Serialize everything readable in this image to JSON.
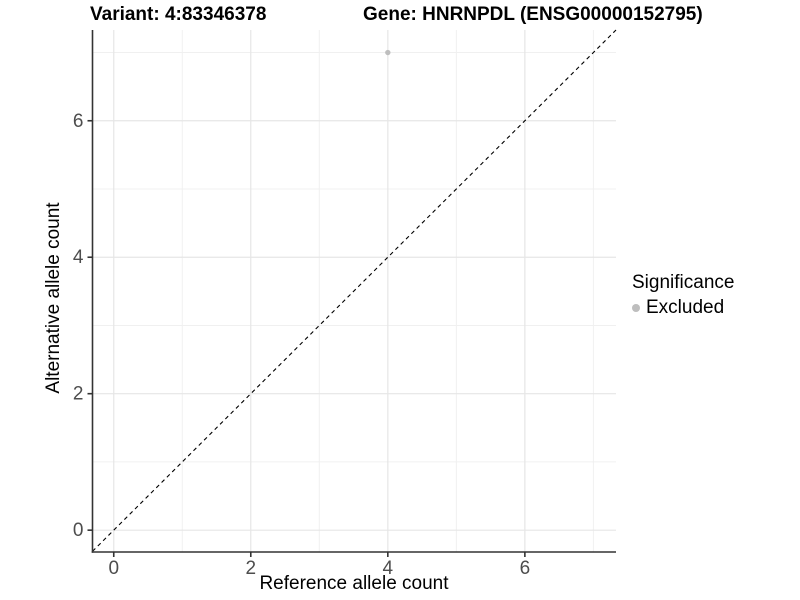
{
  "header": {
    "variant_title": "Variant: 4:83346378",
    "gene_title": "Gene: HNRNPDL (ENSG00000152795)"
  },
  "axes": {
    "x_label": "Reference allele count",
    "y_label": "Alternative allele count"
  },
  "legend": {
    "title": "Significance",
    "items": [
      {
        "label": "Excluded",
        "color": "#BEBEBE"
      }
    ]
  },
  "colors": {
    "background": "#FFFFFF",
    "grid_major": "#E6E6E6",
    "grid_minor": "#F0F0F0",
    "axis": "#333333",
    "tick_label": "#4D4D4D",
    "text": "#000000",
    "point": "#BEBEBE",
    "reference_line": "#000000"
  },
  "chart_data": {
    "type": "scatter",
    "title_left": "Variant: 4:83346378",
    "title_right": "Gene: HNRNPDL (ENSG00000152795)",
    "xlabel": "Reference allele count",
    "ylabel": "Alternative allele count",
    "xlim": [
      -0.31,
      7.33
    ],
    "ylim": [
      -0.32,
      7.33
    ],
    "x_major_ticks": [
      0,
      2,
      4,
      6
    ],
    "y_major_ticks": [
      0,
      2,
      4,
      6
    ],
    "x_minor_gridlines": [
      1,
      3,
      5,
      7
    ],
    "y_minor_gridlines": [
      1,
      3,
      5,
      7
    ],
    "grid": "on",
    "legend_position": "right",
    "legend_title": "Significance",
    "series": [
      {
        "name": "Excluded",
        "color": "#BEBEBE",
        "points": [
          {
            "x": 4,
            "y": 7
          }
        ]
      }
    ],
    "reference_line": {
      "type": "identity y=x",
      "style": "dashed",
      "color": "#000000"
    }
  }
}
